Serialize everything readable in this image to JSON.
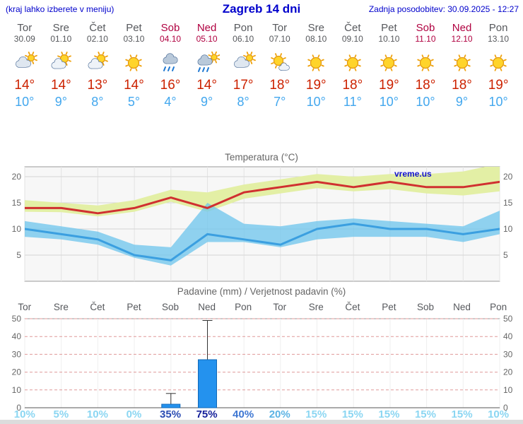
{
  "header": {
    "hint": "(kraj lahko izberete v meniju)",
    "title": "Zagreb 14 dni",
    "updated": "Zadnja posodobitev: 30.09.2025 - 12:27"
  },
  "colors": {
    "header_blue": "#0000cc",
    "weekday_text": "#56585c",
    "weekend_text": "#b00040",
    "max_temp": "#cc2200",
    "min_temp": "#42a7ee"
  },
  "days": [
    {
      "name": "Tor",
      "date": "30.09",
      "weekend": false,
      "icon": "cloud-sun",
      "max": "14°",
      "min": "10°"
    },
    {
      "name": "Sre",
      "date": "01.10",
      "weekend": false,
      "icon": "sun-cloud",
      "max": "14°",
      "min": "9°"
    },
    {
      "name": "Čet",
      "date": "02.10",
      "weekend": false,
      "icon": "sun-cloud",
      "max": "13°",
      "min": "8°"
    },
    {
      "name": "Pet",
      "date": "03.10",
      "weekend": false,
      "icon": "sun",
      "max": "14°",
      "min": "5°"
    },
    {
      "name": "Sob",
      "date": "04.10",
      "weekend": true,
      "icon": "rain",
      "max": "16°",
      "min": "4°"
    },
    {
      "name": "Ned",
      "date": "05.10",
      "weekend": true,
      "icon": "rain-sun",
      "max": "14°",
      "min": "9°"
    },
    {
      "name": "Pon",
      "date": "06.10",
      "weekend": false,
      "icon": "cloud-sun",
      "max": "17°",
      "min": "8°"
    },
    {
      "name": "Tor",
      "date": "07.10",
      "weekend": false,
      "icon": "sun-small-cloud",
      "max": "18°",
      "min": "7°"
    },
    {
      "name": "Sre",
      "date": "08.10",
      "weekend": false,
      "icon": "sun",
      "max": "19°",
      "min": "10°"
    },
    {
      "name": "Čet",
      "date": "09.10",
      "weekend": false,
      "icon": "sun",
      "max": "18°",
      "min": "11°"
    },
    {
      "name": "Pet",
      "date": "10.10",
      "weekend": false,
      "icon": "sun",
      "max": "19°",
      "min": "10°"
    },
    {
      "name": "Sob",
      "date": "11.10",
      "weekend": true,
      "icon": "sun",
      "max": "18°",
      "min": "10°"
    },
    {
      "name": "Ned",
      "date": "12.10",
      "weekend": true,
      "icon": "sun",
      "max": "18°",
      "min": "9°"
    },
    {
      "name": "Pon",
      "date": "13.10",
      "weekend": false,
      "icon": "sun",
      "max": "19°",
      "min": "10°"
    }
  ],
  "chart_data": [
    {
      "type": "line",
      "title": "Temperatura (°C)",
      "x_labels": [
        "Tor",
        "Sre",
        "Čet",
        "Pet",
        "Sob",
        "Ned",
        "Pon",
        "Tor",
        "Sre",
        "Čet",
        "Pet",
        "Sob",
        "Ned",
        "Pon"
      ],
      "ylim": [
        0,
        22
      ],
      "yticks": [
        5,
        10,
        15,
        20
      ],
      "grid": true,
      "watermark": "vreme.us",
      "series": [
        {
          "name": "max temperature",
          "color": "#d03030",
          "values": [
            14,
            14,
            13,
            14,
            16,
            14,
            17,
            18,
            19,
            18,
            19,
            18,
            18,
            19
          ]
        },
        {
          "name": "min temperature",
          "color": "#3b9fe0",
          "values": [
            10,
            9,
            8,
            5,
            4,
            9,
            8,
            7,
            10,
            11,
            10,
            10,
            9,
            10
          ]
        }
      ],
      "bands": [
        {
          "name": "max range",
          "color": "#e3efa5",
          "opacity": 1,
          "upper": [
            15.5,
            15,
            14.5,
            15.5,
            17.5,
            17,
            18.5,
            19.5,
            20.5,
            20,
            20.5,
            20.5,
            21,
            22.5
          ],
          "lower": [
            13.3,
            13.2,
            12.4,
            13.3,
            15.2,
            13.3,
            15.8,
            16.8,
            17.8,
            17.2,
            17.6,
            16.8,
            16.4,
            17.2
          ]
        },
        {
          "name": "min range",
          "color": "#6cc4ec",
          "opacity": 0.75,
          "upper": [
            11.5,
            10.5,
            9.5,
            7,
            6.5,
            15,
            11,
            10.5,
            11.5,
            12,
            11.5,
            11,
            10.5,
            13.5
          ],
          "lower": [
            8.5,
            8,
            7,
            4.5,
            3,
            7.5,
            7.5,
            6.5,
            8,
            8.5,
            8.5,
            8.5,
            7.5,
            9
          ]
        }
      ]
    },
    {
      "type": "bar",
      "title": "Padavine (mm) / Verjetnost padavin (%)",
      "categories": [
        "Tor",
        "Sre",
        "Čet",
        "Pet",
        "Sob",
        "Ned",
        "Pon",
        "Tor",
        "Sre",
        "Čet",
        "Pet",
        "Sob",
        "Ned",
        "Pon"
      ],
      "ylim": [
        0,
        50
      ],
      "yticks": [
        0,
        10,
        20,
        30,
        40,
        50
      ],
      "bar_color": "#2492ee",
      "precip_mm": [
        0,
        0,
        0,
        0,
        2,
        27,
        0,
        0,
        0,
        0,
        0,
        0,
        0,
        0
      ],
      "precip_max_mm": [
        0,
        0,
        0,
        0,
        8,
        49,
        0,
        0,
        0,
        0,
        0,
        0,
        0,
        0
      ],
      "probability_pct": [
        10,
        5,
        10,
        0,
        35,
        75,
        40,
        20,
        15,
        15,
        15,
        15,
        15,
        10
      ],
      "prob_colors": [
        "#8bd6f2",
        "#8bd6f2",
        "#8bd6f2",
        "#8bd6f2",
        "#2a4cb3",
        "#16219b",
        "#3d76d2",
        "#5cb3e4",
        "#8bd6f2",
        "#8bd6f2",
        "#8bd6f2",
        "#8bd6f2",
        "#8bd6f2",
        "#8bd6f2"
      ]
    }
  ]
}
